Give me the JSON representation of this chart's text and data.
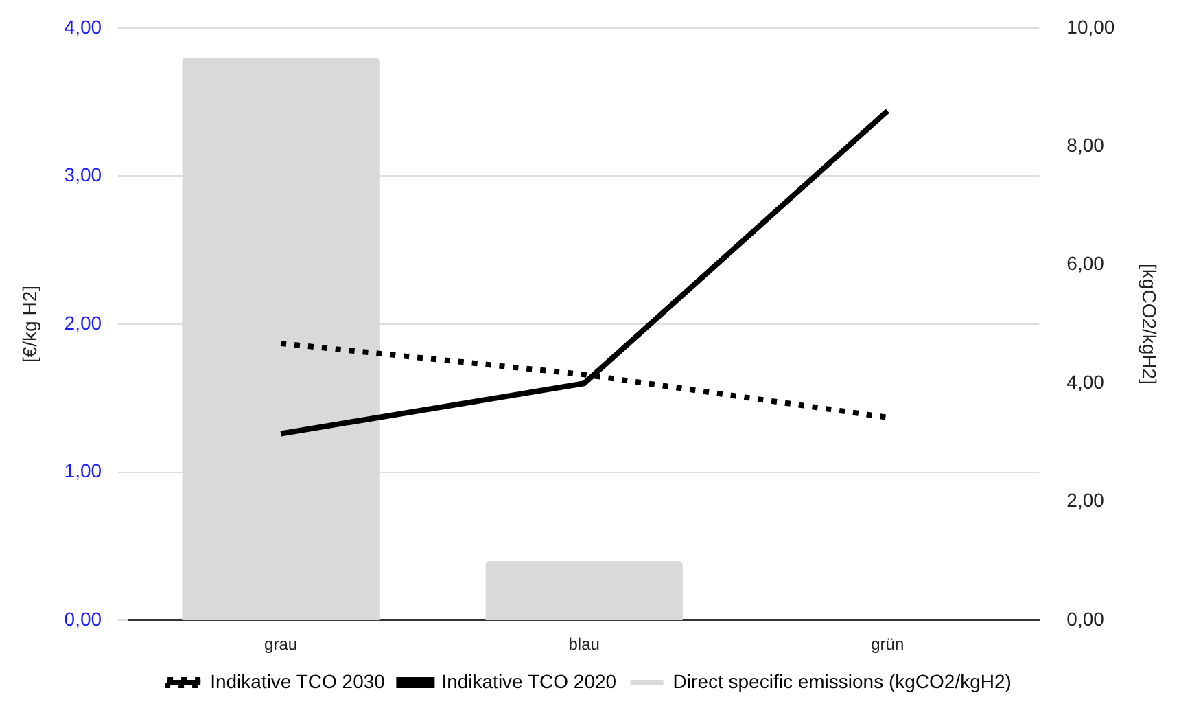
{
  "chart_data": {
    "type": "line",
    "categories": [
      "grau",
      "blau",
      "grün"
    ],
    "series": [
      {
        "name": "Indikative TCO 2030",
        "color": "#000000",
        "line_style": "dotted",
        "values": [
          1.87,
          1.66,
          1.37
        ]
      },
      {
        "name": "Indikative TCO 2020",
        "color": "#000000",
        "line_style": "solid",
        "values": [
          1.26,
          1.6,
          3.44
        ]
      },
      {
        "name": "Direct specific emissions (kgCO2/kgH2)",
        "type": "bar",
        "axis": "y2",
        "color": "#d9d9d9",
        "values": [
          9.5,
          1.0,
          0
        ]
      }
    ],
    "ylabel": "[€/kg H2]",
    "y2label": "[kgCO2/kgH2]",
    "ylim": [
      0,
      4
    ],
    "yticks": [
      {
        "value": 0,
        "label": "0,00"
      },
      {
        "value": 1,
        "label": "1,00"
      },
      {
        "value": 2,
        "label": "2,00"
      },
      {
        "value": 3,
        "label": "3,00"
      },
      {
        "value": 4,
        "label": "4,00"
      }
    ],
    "y2lim": [
      0,
      10
    ],
    "y2ticks": [
      {
        "value": 0,
        "label": "0,00"
      },
      {
        "value": 2,
        "label": "2,00"
      },
      {
        "value": 4,
        "label": "4,00"
      },
      {
        "value": 6,
        "label": "6,00"
      },
      {
        "value": 8,
        "label": "8,00"
      },
      {
        "value": 10,
        "label": "10,00"
      }
    ],
    "grid": "y",
    "legend": "bottom",
    "marker": "none"
  }
}
